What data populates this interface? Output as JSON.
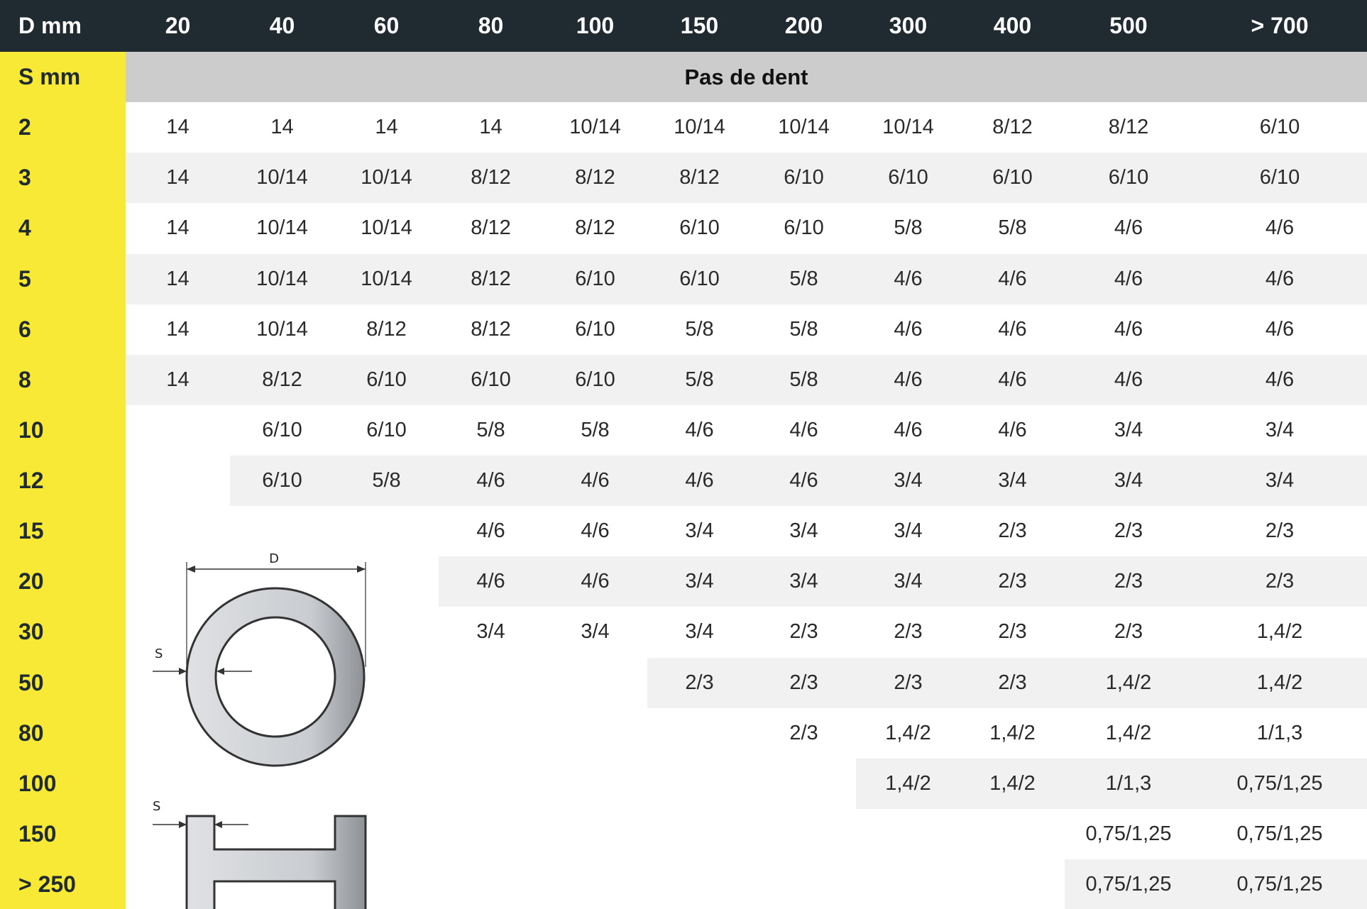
{
  "header": {
    "corner_label": "D mm",
    "diameters": [
      "20",
      "40",
      "60",
      "80",
      "100",
      "150",
      "200",
      "300",
      "400",
      "500",
      "> 700"
    ]
  },
  "subheader": {
    "row_label": "S mm",
    "title": "Pas de dent"
  },
  "rows": [
    {
      "s": "2",
      "values": [
        "14",
        "14",
        "14",
        "14",
        "10/14",
        "10/14",
        "10/14",
        "10/14",
        "8/12",
        "8/12",
        "6/10"
      ]
    },
    {
      "s": "3",
      "values": [
        "14",
        "10/14",
        "10/14",
        "8/12",
        "8/12",
        "8/12",
        "6/10",
        "6/10",
        "6/10",
        "6/10",
        "6/10"
      ]
    },
    {
      "s": "4",
      "values": [
        "14",
        "10/14",
        "10/14",
        "8/12",
        "8/12",
        "6/10",
        "6/10",
        "5/8",
        "5/8",
        "4/6",
        "4/6"
      ]
    },
    {
      "s": "5",
      "values": [
        "14",
        "10/14",
        "10/14",
        "8/12",
        "6/10",
        "6/10",
        "5/8",
        "4/6",
        "4/6",
        "4/6",
        "4/6"
      ]
    },
    {
      "s": "6",
      "values": [
        "14",
        "10/14",
        "8/12",
        "8/12",
        "6/10",
        "5/8",
        "5/8",
        "4/6",
        "4/6",
        "4/6",
        "4/6"
      ]
    },
    {
      "s": "8",
      "values": [
        "14",
        "8/12",
        "6/10",
        "6/10",
        "6/10",
        "5/8",
        "5/8",
        "4/6",
        "4/6",
        "4/6",
        "4/6"
      ]
    },
    {
      "s": "10",
      "values": [
        null,
        "6/10",
        "6/10",
        "5/8",
        "5/8",
        "4/6",
        "4/6",
        "4/6",
        "4/6",
        "3/4",
        "3/4"
      ]
    },
    {
      "s": "12",
      "values": [
        null,
        "6/10",
        "5/8",
        "4/6",
        "4/6",
        "4/6",
        "4/6",
        "3/4",
        "3/4",
        "3/4",
        "3/4"
      ]
    },
    {
      "s": "15",
      "values": [
        null,
        null,
        null,
        "4/6",
        "4/6",
        "3/4",
        "3/4",
        "3/4",
        "2/3",
        "2/3",
        "2/3"
      ]
    },
    {
      "s": "20",
      "values": [
        null,
        null,
        null,
        "4/6",
        "4/6",
        "3/4",
        "3/4",
        "3/4",
        "2/3",
        "2/3",
        "2/3"
      ]
    },
    {
      "s": "30",
      "values": [
        null,
        null,
        null,
        "3/4",
        "3/4",
        "3/4",
        "2/3",
        "2/3",
        "2/3",
        "2/3",
        "1,4/2"
      ]
    },
    {
      "s": "50",
      "values": [
        null,
        null,
        null,
        null,
        null,
        "2/3",
        "2/3",
        "2/3",
        "2/3",
        "1,4/2",
        "1,4/2"
      ]
    },
    {
      "s": "80",
      "values": [
        null,
        null,
        null,
        null,
        null,
        null,
        "2/3",
        "1,4/2",
        "1,4/2",
        "1,4/2",
        "1/1,3"
      ]
    },
    {
      "s": "100",
      "values": [
        null,
        null,
        null,
        null,
        null,
        null,
        null,
        "1,4/2",
        "1,4/2",
        "1/1,3",
        "0,75/1,25"
      ]
    },
    {
      "s": "150",
      "values": [
        null,
        null,
        null,
        null,
        null,
        null,
        null,
        null,
        null,
        "0,75/1,25",
        "0,75/1,25"
      ]
    },
    {
      "s": "> 250",
      "values": [
        null,
        null,
        null,
        null,
        null,
        null,
        null,
        null,
        null,
        "0,75/1,25",
        "0,75/1,25"
      ]
    }
  ],
  "diagram": {
    "dimension_d": "D",
    "dimension_s_tube": "S",
    "dimension_s_beam": "S"
  },
  "colors": {
    "header_bg": "#1f2a31",
    "label_bg": "#f7e935",
    "subheader_bg": "#cccccc",
    "stripe_bg": "#f1f1f1"
  }
}
